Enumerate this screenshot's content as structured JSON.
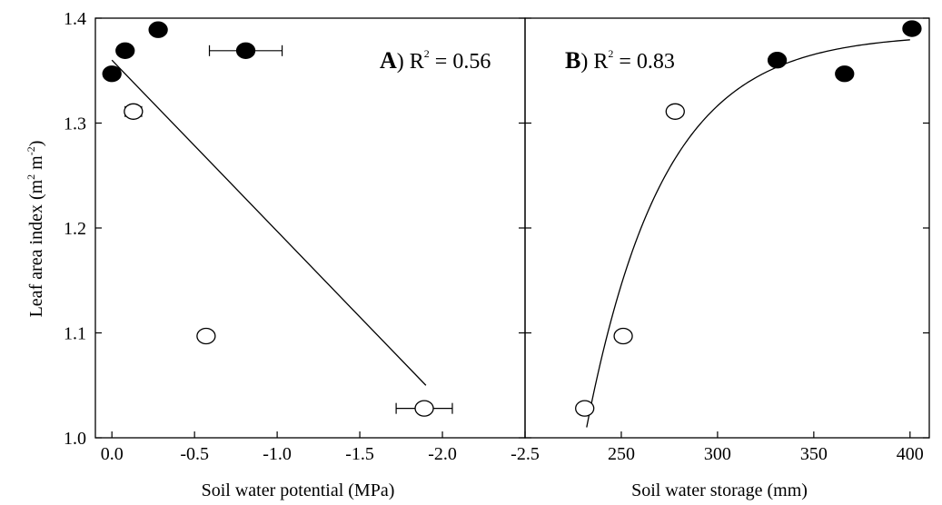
{
  "y_axis": {
    "label_main": "Leaf area index (m",
    "sup1": "2",
    "label_mid": " m",
    "sup2": "-2",
    "label_end": ")"
  },
  "chart_data": [
    {
      "type": "scatter",
      "panel_letter": "A",
      "r2_label": ") R",
      "r2_sup": "2",
      "r2_value": " = 0.56",
      "xlabel": "Soil water potential (MPa)",
      "xlim": [
        0.1,
        -2.5
      ],
      "ylim": [
        1.0,
        1.4
      ],
      "x_ticks": [
        0.0,
        -0.5,
        -1.0,
        -1.5,
        -2.0,
        -2.5
      ],
      "x_tick_labels": [
        "0.0",
        "-0.5",
        "-1.0",
        "-1.5",
        "-2.0",
        "-2.5"
      ],
      "y_ticks": [
        1.0,
        1.1,
        1.2,
        1.3,
        1.4
      ],
      "y_tick_labels": [
        "1.0",
        "1.1",
        "1.2",
        "1.3",
        "1.4"
      ],
      "series": [
        {
          "marker": "filled",
          "points": [
            {
              "x": 0.0,
              "y": 1.347,
              "xerr": 0
            },
            {
              "x": -0.08,
              "y": 1.369,
              "xerr": 0.04
            },
            {
              "x": -0.28,
              "y": 1.389,
              "xerr": 0.02
            },
            {
              "x": -0.81,
              "y": 1.369,
              "xerr": 0.22
            }
          ]
        },
        {
          "marker": "open",
          "points": [
            {
              "x": -0.13,
              "y": 1.311,
              "xerr": 0.05
            },
            {
              "x": -0.57,
              "y": 1.097,
              "xerr": 0.04
            },
            {
              "x": -1.89,
              "y": 1.028,
              "xerr": 0.17
            }
          ]
        }
      ],
      "fit": {
        "type": "linear",
        "x_from": 0.0,
        "x_to": -1.9,
        "y_from": 1.36,
        "y_to": 1.05
      }
    },
    {
      "type": "scatter",
      "panel_letter": "B",
      "r2_label": ") R",
      "r2_sup": "2",
      "r2_value": " = 0.83",
      "xlabel": "Soil water storage (mm)",
      "xlim": [
        200,
        410
      ],
      "ylim": [
        1.0,
        1.4
      ],
      "x_ticks": [
        250,
        300,
        350,
        400
      ],
      "x_tick_labels": [
        "250",
        "300",
        "350",
        "400"
      ],
      "y_ticks": [
        1.0,
        1.1,
        1.2,
        1.3,
        1.4
      ],
      "series": [
        {
          "marker": "filled",
          "points": [
            {
              "x": 331,
              "y": 1.36
            },
            {
              "x": 366,
              "y": 1.347
            },
            {
              "x": 401,
              "y": 1.39
            }
          ]
        },
        {
          "marker": "open",
          "points": [
            {
              "x": 231,
              "y": 1.028
            },
            {
              "x": 251,
              "y": 1.097
            },
            {
              "x": 278,
              "y": 1.311
            }
          ]
        }
      ],
      "fit": {
        "type": "exponential-rise",
        "x_from": 232,
        "x_to": 400,
        "ymax": 1.385,
        "amplitude": 0.375,
        "x0": 232,
        "rate": 0.025
      }
    }
  ]
}
